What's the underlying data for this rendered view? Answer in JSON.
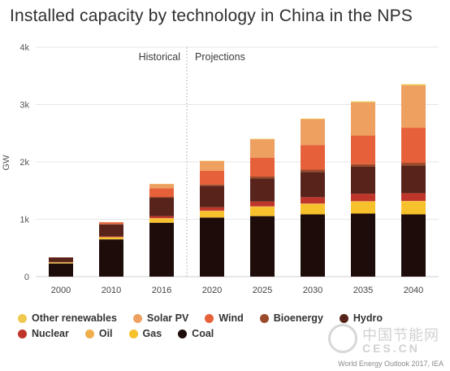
{
  "chart_data": {
    "type": "bar",
    "stacked": true,
    "title": "Installed capacity by technology in China in the NPS",
    "ylabel": "GW",
    "xlabel": "",
    "ylim": [
      0,
      4000
    ],
    "yticks": [
      0,
      1000,
      2000,
      3000,
      4000
    ],
    "ytick_labels": [
      "0",
      "1k",
      "2k",
      "3k",
      "4k"
    ],
    "categories": [
      "2000",
      "2010",
      "2016",
      "2020",
      "2025",
      "2030",
      "2035",
      "2040"
    ],
    "annotations": {
      "left": "Historical",
      "right": "Projections"
    },
    "legend_position": "bottom",
    "grid": true,
    "series": [
      {
        "name": "Coal",
        "color": "#1e0c0a",
        "values": [
          230,
          650,
          940,
          1030,
          1055,
          1085,
          1100,
          1085
        ]
      },
      {
        "name": "Gas",
        "color": "#f7c12c",
        "values": [
          10,
          30,
          70,
          110,
          160,
          180,
          210,
          230
        ]
      },
      {
        "name": "Oil",
        "color": "#f0ae4a",
        "values": [
          10,
          10,
          10,
          10,
          10,
          10,
          5,
          5
        ]
      },
      {
        "name": "Nuclear",
        "color": "#c0352a",
        "values": [
          2,
          11,
          35,
          60,
          85,
          110,
          130,
          135
        ]
      },
      {
        "name": "Hydro",
        "color": "#57231a",
        "values": [
          80,
          210,
          320,
          370,
          400,
          440,
          470,
          480
        ]
      },
      {
        "name": "Bioenergy",
        "color": "#9a4a2a",
        "values": [
          5,
          5,
          15,
          25,
          35,
          40,
          45,
          50
        ]
      },
      {
        "name": "Wind",
        "color": "#e6613a",
        "values": [
          0,
          30,
          150,
          240,
          330,
          430,
          500,
          610
        ]
      },
      {
        "name": "Solar PV",
        "color": "#eda060",
        "values": [
          0,
          5,
          75,
          170,
          320,
          450,
          580,
          740
        ]
      },
      {
        "name": "Other renewables",
        "color": "#efc850",
        "values": [
          0,
          1,
          3,
          5,
          8,
          10,
          15,
          20
        ]
      }
    ]
  },
  "legend": [
    [
      {
        "label": "Other renewables",
        "color": "#efc850"
      },
      {
        "label": "Solar PV",
        "color": "#eda060"
      },
      {
        "label": "Wind",
        "color": "#e6613a"
      },
      {
        "label": "Bioenergy",
        "color": "#9a4a2a"
      },
      {
        "label": "Hydro",
        "color": "#57231a"
      }
    ],
    [
      {
        "label": "Nuclear",
        "color": "#c0352a"
      },
      {
        "label": "Oil",
        "color": "#f0ae4a"
      },
      {
        "label": "Gas",
        "color": "#f7c12c"
      },
      {
        "label": "Coal",
        "color": "#1e0c0a"
      }
    ]
  ],
  "credit": "World Energy Outlook 2017, IEA",
  "watermark": {
    "cn": "中国节能网",
    "en": "CES.CN"
  }
}
